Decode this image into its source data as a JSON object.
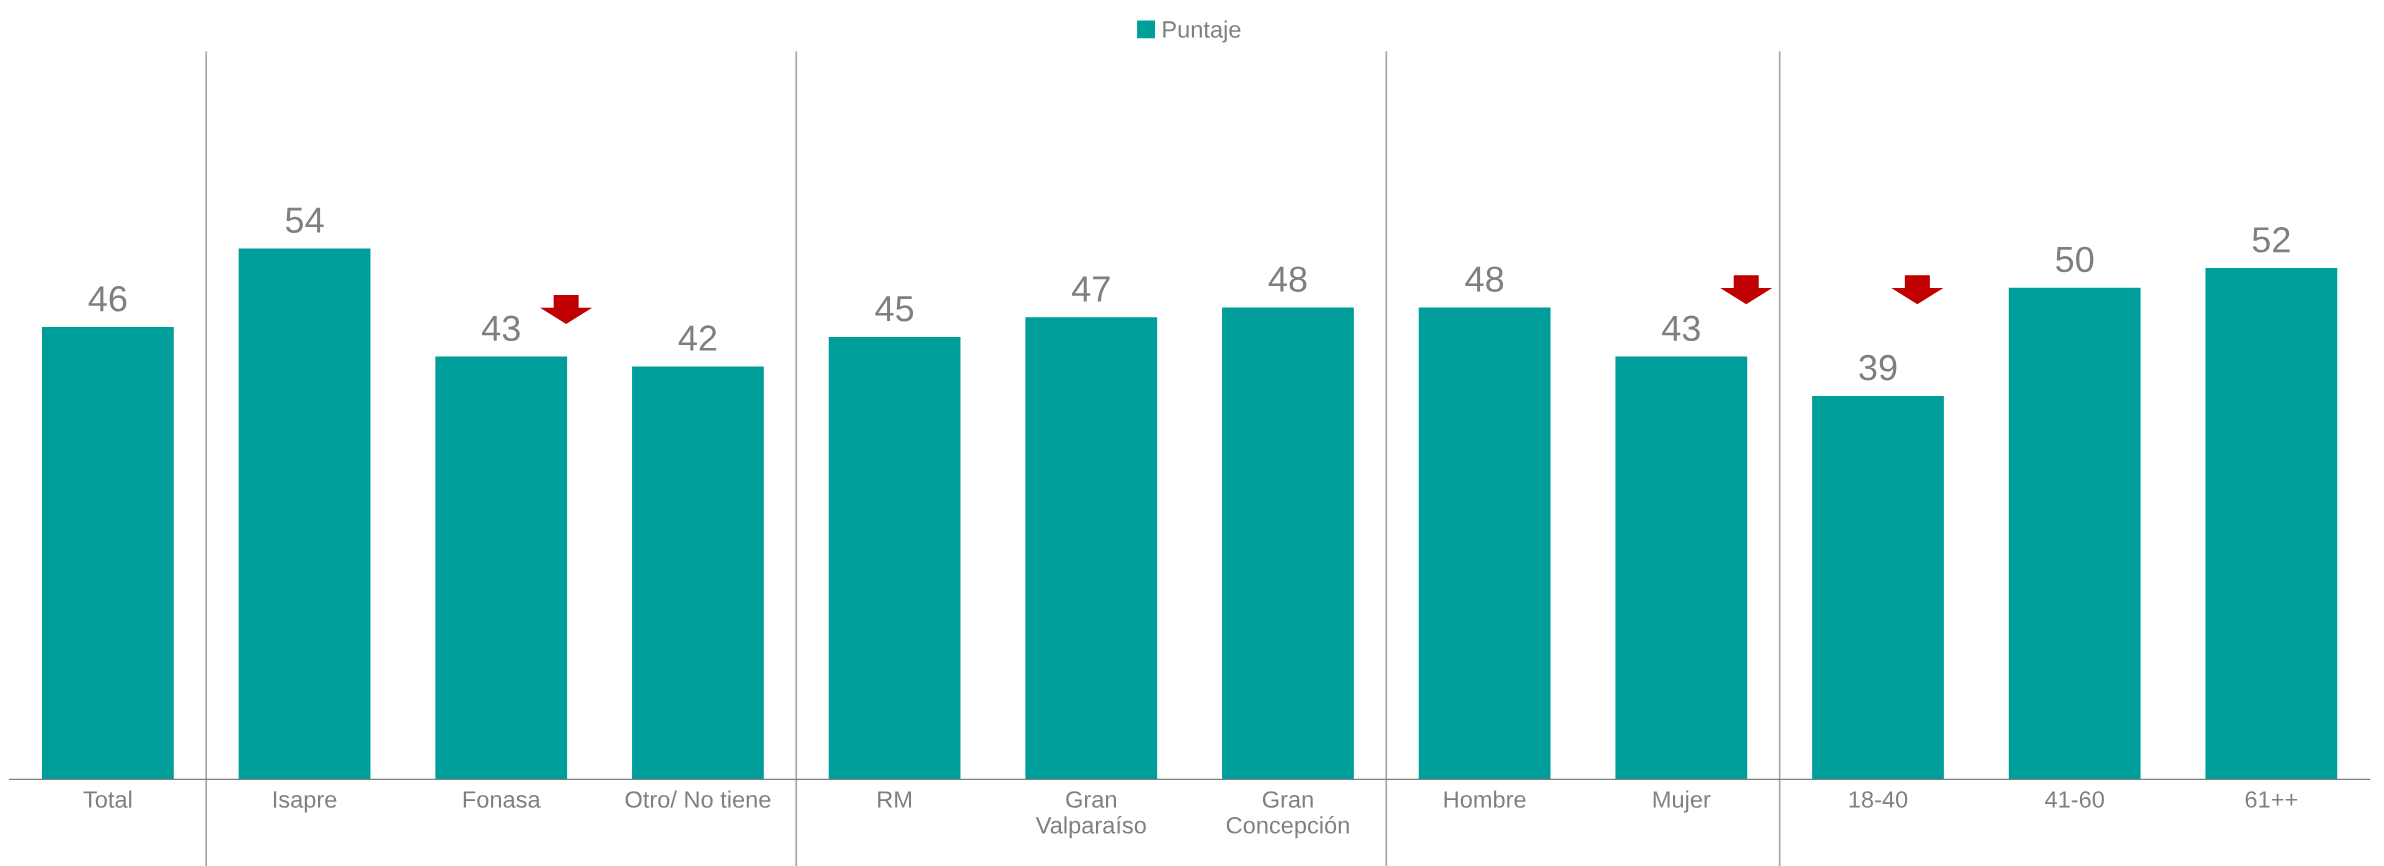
{
  "chart_data": {
    "type": "bar",
    "categories": [
      "Total",
      "Isapre",
      "Fonasa",
      "Otro/ No tiene",
      "RM",
      "Gran\nValparaíso",
      "Gran\nConcepción",
      "Hombre",
      "Mujer",
      "18-40",
      "41-60",
      "61++"
    ],
    "series": [
      {
        "name": "Puntaje",
        "color": "#009e9a",
        "values": [
          46,
          54,
          43,
          42,
          45,
          47,
          48,
          48,
          43,
          39,
          50,
          52
        ]
      }
    ],
    "data_labels": true,
    "legend": "top"
  }
}
